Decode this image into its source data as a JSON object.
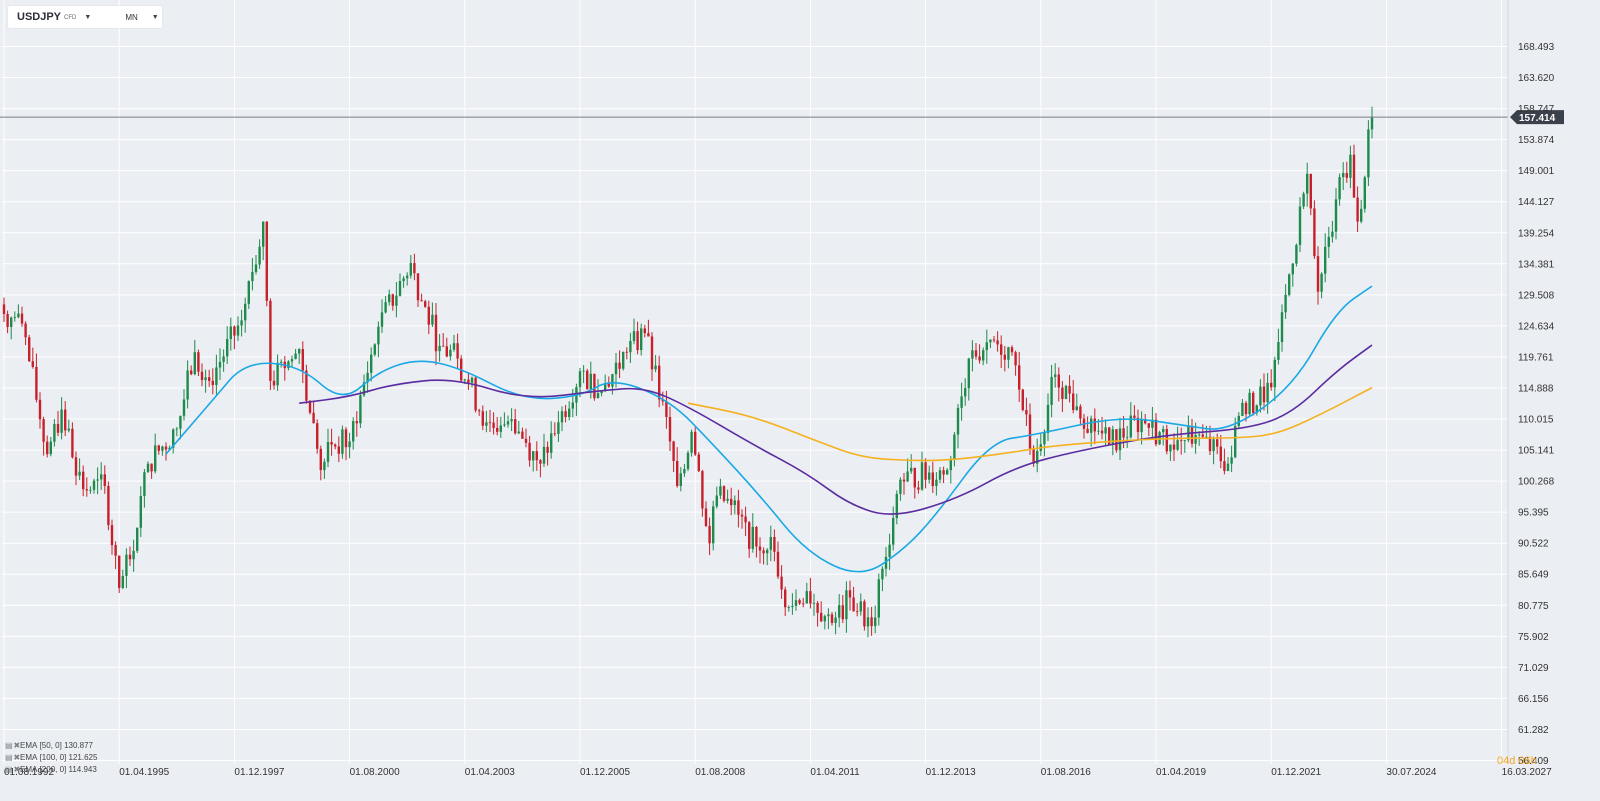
{
  "header": {
    "symbol": "USDJPY",
    "instrument_type": "CFD",
    "timeframe": "MN",
    "symbol_caret_icon": "caret-down-icon",
    "timeframe_caret_icon": "caret-down-icon"
  },
  "indicators": [
    {
      "label": "EMA",
      "params": "[50,  0]",
      "value": "130.877",
      "color": "#1ba8e6"
    },
    {
      "label": "EMA",
      "params": "[100,  0]",
      "value": "121.625",
      "color": "#5b2ca0"
    },
    {
      "label": "EMA",
      "params": "[200,  0]",
      "value": "114.943",
      "color": "#f5b11e"
    }
  ],
  "countdown": {
    "days": "04",
    "d_unit": "d",
    "hours": "06",
    "h_unit": "h"
  },
  "current_price": {
    "label": "157.414",
    "value": 157.414
  },
  "colors": {
    "up": "#1e8a4c",
    "down": "#c8202a",
    "grid": "#ffffff",
    "price_line": "#7a8088",
    "price_tag": "#3b414b"
  },
  "chart_data": {
    "type": "candlestick",
    "title": "USDJPY",
    "y_axis": {
      "ticks": [
        168.493,
        163.62,
        158.747,
        153.874,
        149.001,
        144.127,
        139.254,
        134.381,
        129.508,
        124.634,
        119.761,
        114.888,
        110.015,
        105.141,
        100.268,
        95.395,
        90.522,
        85.649,
        80.775,
        75.902,
        71.029,
        66.156,
        61.282,
        56.409
      ],
      "labels": [
        "168.493",
        "163.620",
        "158.747",
        "153.874",
        "149.001",
        "144.127",
        "139.254",
        "134.381",
        "129.508",
        "124.634",
        "119.761",
        "114.888",
        "110.015",
        "105.141",
        "100.268",
        "95.395",
        "90.522",
        "85.649",
        "80.775",
        "75.902",
        "71.029",
        "66.156",
        "61.282",
        "56.409"
      ],
      "range": [
        56.409,
        168.493
      ]
    },
    "x_axis": {
      "labels": [
        "01.08.1992",
        "01.04.1995",
        "01.12.1997",
        "01.08.2000",
        "01.04.2003",
        "01.12.2005",
        "01.08.2008",
        "01.04.2011",
        "01.12.2013",
        "01.08.2016",
        "01.04.2019",
        "01.12.2021",
        "30.07.2024",
        "16.03.2027"
      ],
      "start": "1992-08",
      "range": [
        "1992-08",
        "2027-03"
      ]
    },
    "series_keypoints": {
      "close": [
        [
          "1992-08",
          126.5
        ],
        [
          "1993-01",
          125.0
        ],
        [
          "1993-08",
          104.5
        ],
        [
          "1993-12",
          111.5
        ],
        [
          "1994-06",
          99.0
        ],
        [
          "1994-12",
          99.5
        ],
        [
          "1995-04",
          83.5
        ],
        [
          "1995-07",
          88.0
        ],
        [
          "1995-12",
          103.0
        ],
        [
          "1996-08",
          108.5
        ],
        [
          "1997-01",
          120.5
        ],
        [
          "1997-05",
          116.0
        ],
        [
          "1998-02",
          125.5
        ],
        [
          "1998-08",
          141.0
        ],
        [
          "1998-10",
          116.0
        ],
        [
          "1999-02",
          118.0
        ],
        [
          "1999-06",
          121.0
        ],
        [
          "1999-12",
          102.0
        ],
        [
          "2000-03",
          106.0
        ],
        [
          "2000-08",
          106.5
        ],
        [
          "2001-04",
          124.5
        ],
        [
          "2002-01",
          134.5
        ],
        [
          "2002-04",
          128.5
        ],
        [
          "2002-09",
          121.5
        ],
        [
          "2003-02",
          119.5
        ],
        [
          "2003-10",
          109.5
        ],
        [
          "2004-02",
          109.0
        ],
        [
          "2004-05",
          110.0
        ],
        [
          "2005-01",
          103.0
        ],
        [
          "2005-06",
          109.5
        ],
        [
          "2005-12",
          117.5
        ],
        [
          "2006-06",
          114.5
        ],
        [
          "2007-01",
          120.5
        ],
        [
          "2007-06",
          123.5
        ],
        [
          "2008-01",
          106.5
        ],
        [
          "2008-03",
          99.5
        ],
        [
          "2008-07",
          108.0
        ],
        [
          "2008-12",
          90.5
        ],
        [
          "2009-02",
          98.0
        ],
        [
          "2009-06",
          96.5
        ],
        [
          "2010-01",
          90.0
        ],
        [
          "2010-05",
          91.5
        ],
        [
          "2010-10",
          80.5
        ],
        [
          "2011-03",
          83.0
        ],
        [
          "2011-10",
          78.0
        ],
        [
          "2012-03",
          82.0
        ],
        [
          "2012-09",
          77.5
        ],
        [
          "2012-12",
          86.5
        ],
        [
          "2013-05",
          100.5
        ],
        [
          "2014-06",
          102.0
        ],
        [
          "2014-12",
          119.5
        ],
        [
          "2015-06",
          122.5
        ],
        [
          "2015-12",
          120.5
        ],
        [
          "2016-06",
          103.0
        ],
        [
          "2016-12",
          117.0
        ],
        [
          "2017-06",
          112.0
        ],
        [
          "2018-03",
          106.0
        ],
        [
          "2018-12",
          110.0
        ],
        [
          "2019-08",
          106.0
        ],
        [
          "2020-03",
          107.5
        ],
        [
          "2020-12",
          103.0
        ],
        [
          "2021-03",
          110.5
        ],
        [
          "2021-12",
          115.0
        ],
        [
          "2022-04",
          129.5
        ],
        [
          "2022-10",
          148.5
        ],
        [
          "2023-01",
          130.0
        ],
        [
          "2023-06",
          144.5
        ],
        [
          "2023-10",
          151.5
        ],
        [
          "2023-12",
          141.0
        ],
        [
          "2024-04",
          157.414
        ]
      ],
      "ema_50": [
        [
          "1996-05",
          104.5
        ],
        [
          "1997-06",
          113.0
        ],
        [
          "1998-03",
          119.0
        ],
        [
          "1999-06",
          118.5
        ],
        [
          "2000-06",
          112.5
        ],
        [
          "2001-04",
          117.5
        ],
        [
          "2002-03",
          119.5
        ],
        [
          "2003-03",
          118.0
        ],
        [
          "2004-08",
          113.0
        ],
        [
          "2005-12",
          113.5
        ],
        [
          "2006-09",
          116.5
        ],
        [
          "2008-01",
          113.0
        ],
        [
          "2009-01",
          106.0
        ],
        [
          "2010-02",
          98.0
        ],
        [
          "2011-03",
          89.0
        ],
        [
          "2012-06",
          85.0
        ],
        [
          "2013-06",
          89.5
        ],
        [
          "2014-03",
          95.0
        ],
        [
          "2015-06",
          106.5
        ],
        [
          "2016-06",
          107.5
        ],
        [
          "2018-06",
          110.5
        ],
        [
          "2019-12",
          109.0
        ],
        [
          "2020-12",
          108.0
        ],
        [
          "2022-06",
          115.0
        ],
        [
          "2023-06",
          127.0
        ],
        [
          "2024-04",
          130.877
        ]
      ],
      "ema_100": [
        [
          "1999-06",
          112.5
        ],
        [
          "2000-08",
          113.5
        ],
        [
          "2001-08",
          115.5
        ],
        [
          "2003-01",
          116.5
        ],
        [
          "2004-09",
          113.0
        ],
        [
          "2006-06",
          114.5
        ],
        [
          "2007-06",
          115.0
        ],
        [
          "2008-06",
          112.0
        ],
        [
          "2009-12",
          106.0
        ],
        [
          "2011-03",
          101.5
        ],
        [
          "2012-03",
          96.5
        ],
        [
          "2013-03",
          94.5
        ],
        [
          "2014-09",
          97.5
        ],
        [
          "2016-01",
          102.5
        ],
        [
          "2017-06",
          105.0
        ],
        [
          "2019-06",
          107.5
        ],
        [
          "2021-06",
          108.5
        ],
        [
          "2022-06",
          111.0
        ],
        [
          "2023-06",
          117.5
        ],
        [
          "2024-04",
          121.625
        ]
      ],
      "ema_200": [
        [
          "2008-06",
          112.5
        ],
        [
          "2009-12",
          110.5
        ],
        [
          "2011-06",
          106.5
        ],
        [
          "2012-06",
          104.0
        ],
        [
          "2013-06",
          103.5
        ],
        [
          "2014-06",
          103.5
        ],
        [
          "2015-09",
          104.5
        ],
        [
          "2017-01",
          106.0
        ],
        [
          "2019-06",
          107.0
        ],
        [
          "2021-01",
          107.0
        ],
        [
          "2022-01",
          107.5
        ],
        [
          "2023-01",
          110.5
        ],
        [
          "2024-04",
          114.943
        ]
      ]
    }
  }
}
